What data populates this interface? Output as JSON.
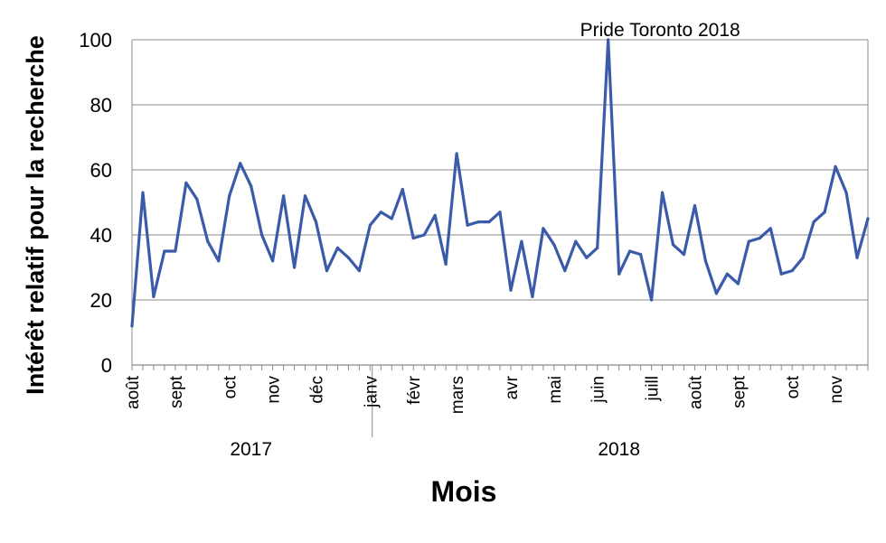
{
  "chart_data": {
    "type": "line",
    "xlabel": "Mois",
    "ylabel": "Intérêt relatif pour la recherche",
    "ylim": [
      0,
      100
    ],
    "yticks": [
      0,
      20,
      40,
      60,
      80,
      100
    ],
    "grid": "horizontal",
    "legend": "none",
    "line_color": "#3a5ba9",
    "annotation": {
      "text": "Pride Toronto 2018",
      "at_index": 46
    },
    "month_labels": [
      {
        "label": "août",
        "index": 0
      },
      {
        "label": "sept",
        "index": 4
      },
      {
        "label": "oct",
        "index": 9
      },
      {
        "label": "nov",
        "index": 13
      },
      {
        "label": "déc",
        "index": 17
      },
      {
        "label": "janv",
        "index": 22
      },
      {
        "label": "févr",
        "index": 26
      },
      {
        "label": "mars",
        "index": 30
      },
      {
        "label": "avr",
        "index": 35
      },
      {
        "label": "mai",
        "index": 39
      },
      {
        "label": "juin",
        "index": 43
      },
      {
        "label": "juill",
        "index": 48
      },
      {
        "label": "août",
        "index": 52
      },
      {
        "label": "sept",
        "index": 56
      },
      {
        "label": "oct",
        "index": 61
      },
      {
        "label": "nov",
        "index": 65
      }
    ],
    "years": [
      {
        "label": "2017",
        "start": 0,
        "end": 22
      },
      {
        "label": "2018",
        "start": 22,
        "end": 69
      }
    ],
    "series": [
      {
        "values": [
          12,
          53,
          21,
          35,
          35,
          56,
          51,
          38,
          32,
          52,
          62,
          55,
          40,
          32,
          52,
          30,
          52,
          44,
          29,
          36,
          33,
          29,
          43,
          47,
          45,
          54,
          39,
          40,
          46,
          31,
          65,
          43,
          44,
          44,
          47,
          23,
          38,
          21,
          42,
          37,
          29,
          38,
          33,
          36,
          100,
          28,
          35,
          34,
          20,
          53,
          37,
          34,
          49,
          32,
          22,
          28,
          25,
          38,
          39,
          42,
          28,
          29,
          33,
          44,
          47,
          61,
          53,
          33,
          45
        ]
      }
    ]
  }
}
